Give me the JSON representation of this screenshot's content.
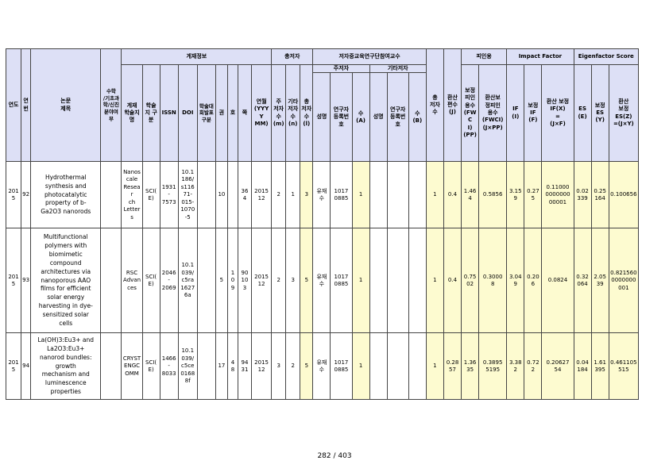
{
  "header": {
    "year": "연도",
    "seq": "연번",
    "paper_title": "논문\n제목",
    "field_flag": "수학\n/기초과\n학/신진\n분야여\n부",
    "pub_info": "게재정보",
    "journal": "게재\n학술지\n명",
    "journal_type": "학술\n지 구\n분",
    "issn": "ISSN",
    "doi": "DOI",
    "conf_type": "학술대\n회발표\n구분",
    "volume": "권",
    "issue": "호",
    "page": "쪽",
    "date": "연월\n(YYYY\nMM)",
    "authors_total": "총저자",
    "main_authors": "주\n저자\n수\n(m)",
    "other_authors": "기타\n저자\n수\n(n)",
    "total_authors": "총\n저자\n수\n(l)",
    "participating": "저자중교육연구단참여교수",
    "main_author": "주저자",
    "other_author": "기타저자",
    "name": "성명",
    "researcher_no": "연구자\n등록번\n호",
    "count_a": "수\n(A)",
    "count_b": "수\n(B)",
    "total_participants": "총\n저자\n수",
    "conv_score": "환산\n편수\n(J)",
    "citations": "피인용",
    "cit_normal": "보정\n피인\n용수\n(FWC\nI)\n(PP)",
    "cit_conv": "환산보\n정피인\n용수\n(FWCI)\n(J×PP)",
    "impact_factor": "Impact Factor",
    "if": "IF\n(I)",
    "if_norm": "보정\nIF\n(F)",
    "if_conv": "환산 보정\nIF(X)\n=\n(J×F)",
    "eigenfactor": "Eigenfactor Score",
    "es": "ES\n(E)",
    "es_norm": "보정\nES\n(Y)",
    "es_conv": "환산\n보정\nES(Z)\n=(J×Y)"
  },
  "rows": [
    {
      "year": "201\n5",
      "seq": "92",
      "title": "Hydrothermal\nsynthesis and\nphotocatalytic\nproperty of b-\nGa2O3 nanorods",
      "field": "",
      "journal": "Nanos\ncale\nResear\nch\nLetter\ns",
      "jtype": "SCI(\nE)",
      "issn": "1931\n-\n7573",
      "doi": "10.1\n186/\ns116\n71-\n015-\n1070\n-5",
      "conf": "",
      "volume": "10",
      "issue": "",
      "page": "36\n4",
      "date": "2015\n12",
      "m": "2",
      "n": "1",
      "l": "3",
      "name": "유재\n수",
      "reg": "1017\n0885",
      "a": "1",
      "name_b": "",
      "reg_b": "",
      "b": "",
      "total": "1",
      "j": "0.4",
      "pp": "1.46\n4",
      "jpp": "0.5856",
      "if": "3.15\n9",
      "f": "0.27\n5",
      "x": "0.11000\n0000000\n00001",
      "e": "0.02\n339",
      "y": "0.25\n164",
      "z": "0.100656"
    },
    {
      "year": "201\n5",
      "seq": "93",
      "title": "Multifunctional\npolymers with\nbiomimetic\ncompound\narchitectures via\nnanoporous AAO\nfilms for efficient\nsolar energy\nharvesting in dye-\nsensitized solar\ncells",
      "field": "",
      "journal": "RSC\nAdvan\nces",
      "jtype": "SCI(\nE)",
      "issn": "2046\n-\n2069",
      "doi": "10.1\n039/\nc5ra\n1627\n6a",
      "conf": "",
      "volume": "5",
      "issue": "1\n0\n9",
      "page": "90\n10\n3",
      "date": "2015\n12",
      "m": "2",
      "n": "3",
      "l": "5",
      "name": "유재\n수",
      "reg": "1017\n0885",
      "a": "1",
      "name_b": "",
      "reg_b": "",
      "b": "",
      "total": "1",
      "j": "0.4",
      "pp": "0.75\n02",
      "jpp": "0.3000\n8",
      "if": "3.04\n9",
      "f": "0.20\n6",
      "x": "0.0824",
      "e": "0.32\n064",
      "y": "2.05\n39",
      "z": "0.821560\n0000000\n001"
    },
    {
      "year": "201\n5",
      "seq": "94",
      "title": "La(OH)3:Eu3+ and\nLa2O3:Eu3+\nnanorod bundles:\ngrowth\nmechanism and\nluminescence\nproperties",
      "field": "",
      "journal": "CRYST\nENGC\nOMM",
      "jtype": "SCI(\nE)",
      "issn": "1466\n-\n8033",
      "doi": "10.1\n039/\nc5ce\n0168\n8f",
      "conf": "",
      "volume": "17",
      "issue": "4\n8",
      "page": "94\n31",
      "date": "2015\n12",
      "m": "3",
      "n": "2",
      "l": "5",
      "name": "유재\n수",
      "reg": "1017\n0885",
      "a": "1",
      "name_b": "",
      "reg_b": "",
      "b": "",
      "total": "1",
      "j": "0.28\n57",
      "pp": "1.36\n35",
      "jpp": "0.3895\n5195",
      "if": "3.38\n2",
      "f": "0.72\n2",
      "x": "0.20627\n54",
      "e": "0.04\n184",
      "y": "1.61\n395",
      "z": "0.461105\n515"
    }
  ],
  "footer": {
    "page": "282 / 403"
  },
  "colors": {
    "header_bg": "#dde0f6",
    "highlight": "#fdfbd0"
  }
}
